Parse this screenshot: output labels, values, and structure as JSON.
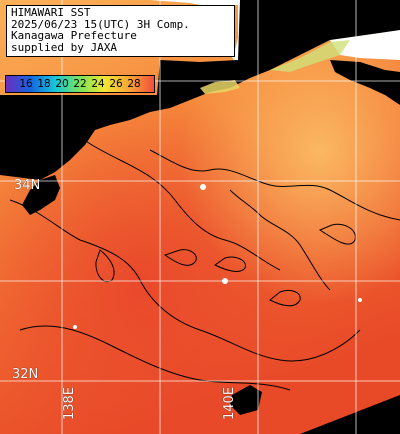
{
  "header": {
    "line1": "HIMAWARI SST",
    "line2": "2025/06/23 15(UTC) 3H Comp.",
    "line3": "Kanagawa Prefecture",
    "line4": "supplied by JAXA"
  },
  "scale": {
    "labels": [
      "16",
      "18",
      "20",
      "22",
      "24",
      "26",
      "28"
    ],
    "colors": [
      "#6b2fbf",
      "#1565e0",
      "#17c6d8",
      "#7be35a",
      "#f1e634",
      "#f7a43a",
      "#f2503a"
    ]
  },
  "grid_labels": {
    "lat_34": "34N",
    "lat_32": "32N",
    "lon_138": "138E",
    "lon_140": "140E"
  },
  "colors": {
    "land": "#000000",
    "cloud": "#ffffff",
    "sst_cool": "#f9a14a",
    "sst_warm": "#e8462a",
    "grid": "#ffffff",
    "contour": "#000000"
  }
}
